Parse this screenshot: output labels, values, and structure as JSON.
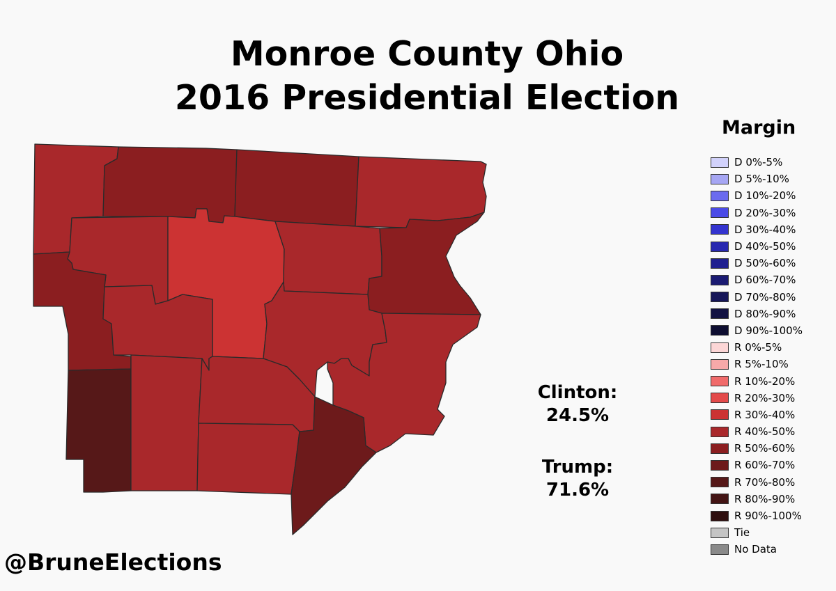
{
  "title": {
    "line1": "Monroe County Ohio",
    "line2": "2016 Presidential Election"
  },
  "legend": {
    "heading": "Margin",
    "items": [
      {
        "label": "D 0%-5%",
        "color": "#d2d2fb"
      },
      {
        "label": "D 5%-10%",
        "color": "#a6a6f3"
      },
      {
        "label": "D 10%-20%",
        "color": "#6b6bef"
      },
      {
        "label": "D 20%-30%",
        "color": "#4a4ae6"
      },
      {
        "label": "D 30%-40%",
        "color": "#3434cf"
      },
      {
        "label": "D 40%-50%",
        "color": "#2828b0"
      },
      {
        "label": "D 50%-60%",
        "color": "#202090"
      },
      {
        "label": "D 60%-70%",
        "color": "#1a1a72"
      },
      {
        "label": "D 70%-80%",
        "color": "#161658"
      },
      {
        "label": "D 80%-90%",
        "color": "#121242"
      },
      {
        "label": "D 90%-100%",
        "color": "#0d0d30"
      },
      {
        "label": "R 0%-5%",
        "color": "#fcd6d6"
      },
      {
        "label": "R 5%-10%",
        "color": "#f7a9a9"
      },
      {
        "label": "R 10%-20%",
        "color": "#f06a6a"
      },
      {
        "label": "R 20%-30%",
        "color": "#e34a4a"
      },
      {
        "label": "R 30%-40%",
        "color": "#cc3333"
      },
      {
        "label": "R 40%-50%",
        "color": "#a9282b"
      },
      {
        "label": "R 50%-60%",
        "color": "#8b1e20"
      },
      {
        "label": "R 60%-70%",
        "color": "#6d1a1b"
      },
      {
        "label": "R 70%-80%",
        "color": "#561818"
      },
      {
        "label": "R 80%-90%",
        "color": "#431414"
      },
      {
        "label": "R 90%-100%",
        "color": "#2f0f0f"
      },
      {
        "label": "Tie",
        "color": "#c4c4c4"
      },
      {
        "label": "No Data",
        "color": "#8a8a8a"
      }
    ]
  },
  "results": {
    "clinton_label": "Clinton:",
    "clinton_pct": "24.5%",
    "trump_label": "Trump:",
    "trump_pct": "71.6%"
  },
  "credit": "@BruneElections",
  "townships": [
    {
      "margin": "R 40%-50%"
    },
    {
      "margin": "R 50%-60%"
    },
    {
      "margin": "R 50%-60%"
    },
    {
      "margin": "R 40%-50%"
    },
    {
      "margin": "R 40%-50%"
    },
    {
      "margin": "R 30%-40%"
    },
    {
      "margin": "R 40%-50%"
    },
    {
      "margin": "R 50%-60%"
    },
    {
      "margin": "R 50%-60%"
    },
    {
      "margin": "R 40%-50%"
    },
    {
      "margin": "R 40%-50%"
    },
    {
      "margin": "R 40%-50%"
    },
    {
      "margin": "R 70%-80%"
    },
    {
      "margin": "R 40%-50%"
    },
    {
      "margin": "R 40%-50%"
    },
    {
      "margin": "R 40%-50%"
    },
    {
      "margin": "R 60%-70%"
    },
    {
      "margin": "R 50%-60%"
    }
  ]
}
